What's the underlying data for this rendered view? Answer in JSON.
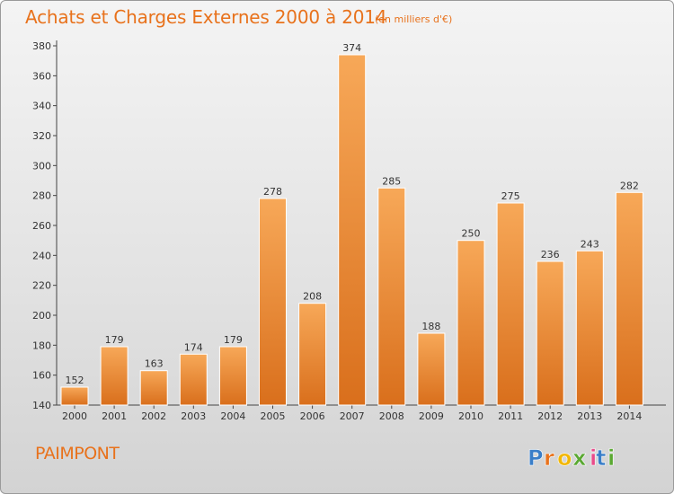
{
  "header": {
    "title": "Achats et Charges Externes 2000 à 2014",
    "unit": "(en milliers d'€)"
  },
  "footer": {
    "town": "PAIMPONT",
    "logo_text": "Proxiti"
  },
  "colors": {
    "accent": "#e8721c",
    "bar_light": "#f7a858",
    "bar_dark": "#d96f1c",
    "logo_letters": [
      "#3a7ec8",
      "#e8721c",
      "#f2b705",
      "#5aa832",
      "#e84c8a",
      "#3a7ec8",
      "#5aa832"
    ]
  },
  "chart_data": {
    "type": "bar",
    "title": "Achats et Charges Externes 2000 à 2014",
    "subtitle": "(en milliers d'€)",
    "xlabel": "",
    "ylabel": "",
    "categories": [
      "2000",
      "2001",
      "2002",
      "2003",
      "2004",
      "2005",
      "2006",
      "2007",
      "2008",
      "2009",
      "2010",
      "2011",
      "2012",
      "2013",
      "2014"
    ],
    "values": [
      152,
      179,
      163,
      174,
      179,
      278,
      208,
      374,
      285,
      188,
      250,
      275,
      236,
      243,
      282
    ],
    "value_labels": [
      "152",
      "179",
      "163",
      "174",
      "179",
      "278",
      "208",
      "374",
      "285",
      "188",
      "250",
      "275",
      "236",
      "243",
      "282"
    ],
    "ylim": [
      140,
      380
    ],
    "yticks": [
      140,
      160,
      180,
      200,
      220,
      240,
      260,
      280,
      300,
      320,
      340,
      360,
      380
    ],
    "grid": false,
    "legend": "none"
  }
}
